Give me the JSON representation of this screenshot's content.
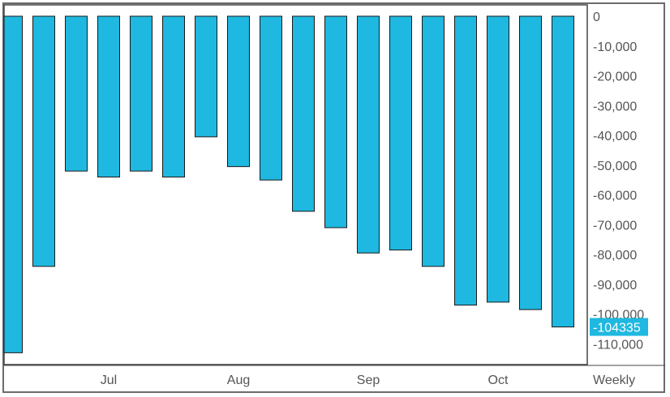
{
  "chart_data": {
    "type": "bar",
    "x": [
      "",
      "",
      "",
      "Jul",
      "",
      "",
      "",
      "Aug",
      "",
      "",
      "",
      "Sep",
      "",
      "",
      "",
      "Oct",
      "",
      ""
    ],
    "series": [
      {
        "values": [
          -113000,
          -84000,
          -52000,
          -54000,
          -52000,
          -54000,
          -40500,
          -50500,
          -55000,
          -65500,
          -71000,
          -79500,
          -78500,
          -84000,
          -97000,
          -96000,
          -98500,
          -104335
        ]
      }
    ],
    "x_tick_labels": [
      "Jul",
      "Aug",
      "Sep",
      "Oct"
    ],
    "y_ticks": [
      "0",
      "-10,000",
      "-20,000",
      "-30,000",
      "-40,000",
      "-50,000",
      "-60,000",
      "-70,000",
      "-80,000",
      "-90,000",
      "-100,000",
      "-110,000"
    ],
    "ylim": [
      -115000,
      0
    ],
    "last_value_label": "-104335",
    "period_label": "Weekly",
    "bar_color": "#1fb8e0",
    "bar_stroke": "#1a1a1a",
    "grid": false
  }
}
